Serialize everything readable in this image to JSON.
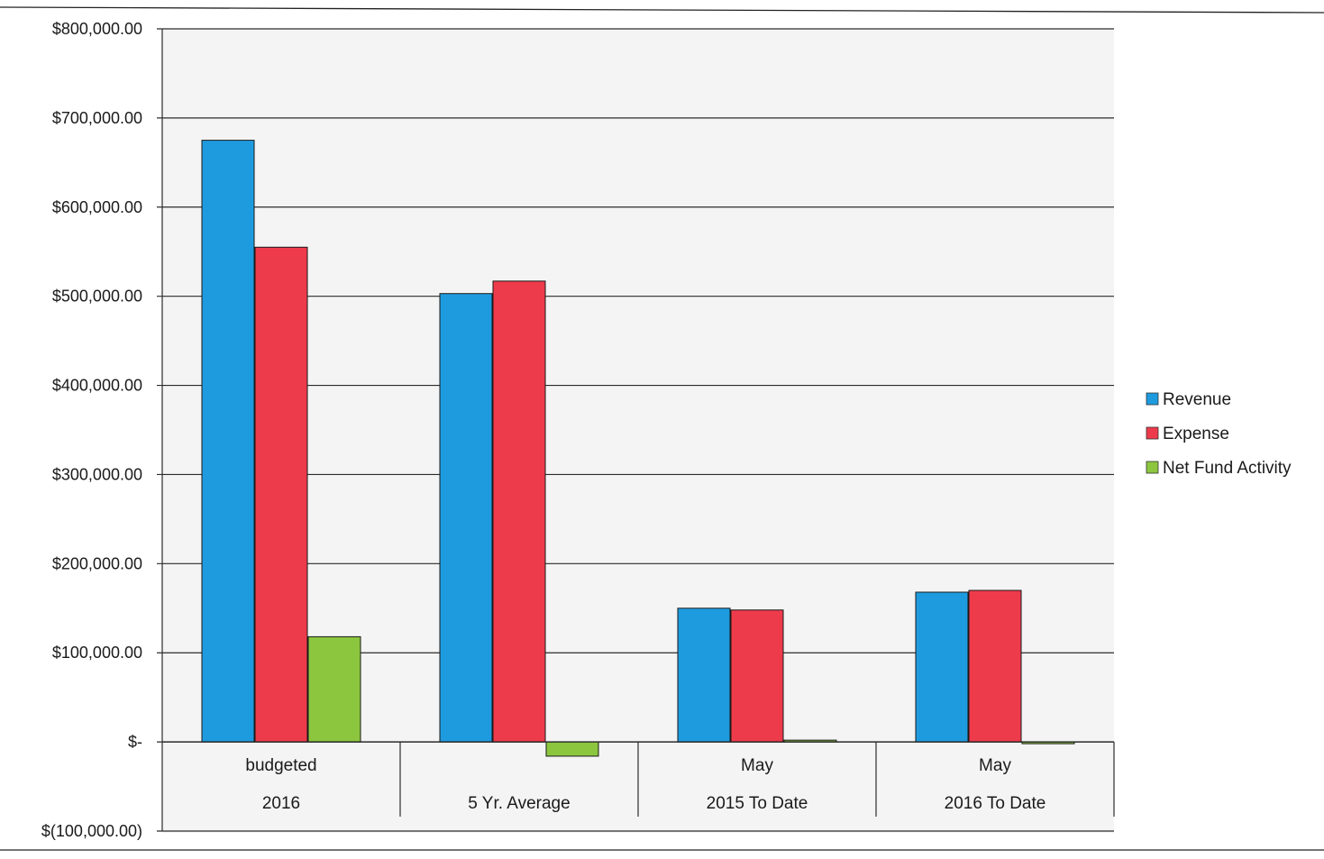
{
  "chart_data": {
    "type": "bar",
    "categories": [
      [
        "budgeted",
        "2016"
      ],
      [
        "",
        "5 Yr. Average"
      ],
      [
        "May",
        "2015 To Date"
      ],
      [
        "May",
        "2016 To Date"
      ]
    ],
    "series": [
      {
        "name": "Revenue",
        "color": "#1E9BDF",
        "values": [
          675000,
          503000,
          150000,
          168000
        ]
      },
      {
        "name": "Expense",
        "color": "#EE3B4B",
        "values": [
          555000,
          517000,
          148000,
          170000
        ]
      },
      {
        "name": "Net Fund Activity",
        "color": "#8CC63F",
        "values": [
          118000,
          -16000,
          2000,
          -2000
        ]
      }
    ],
    "title": "",
    "xlabel": "",
    "ylabel": "",
    "ylim": [
      -100000,
      800000
    ],
    "yticks": [
      800000,
      700000,
      600000,
      500000,
      400000,
      300000,
      200000,
      100000,
      0,
      -100000
    ],
    "ytick_labels": [
      "$800,000.00",
      "$700,000.00",
      "$600,000.00",
      "$500,000.00",
      "$400,000.00",
      "$300,000.00",
      "$200,000.00",
      "$100,000.00",
      "$-",
      "$(100,000.00)"
    ],
    "grid": true,
    "legend_position": "right"
  }
}
